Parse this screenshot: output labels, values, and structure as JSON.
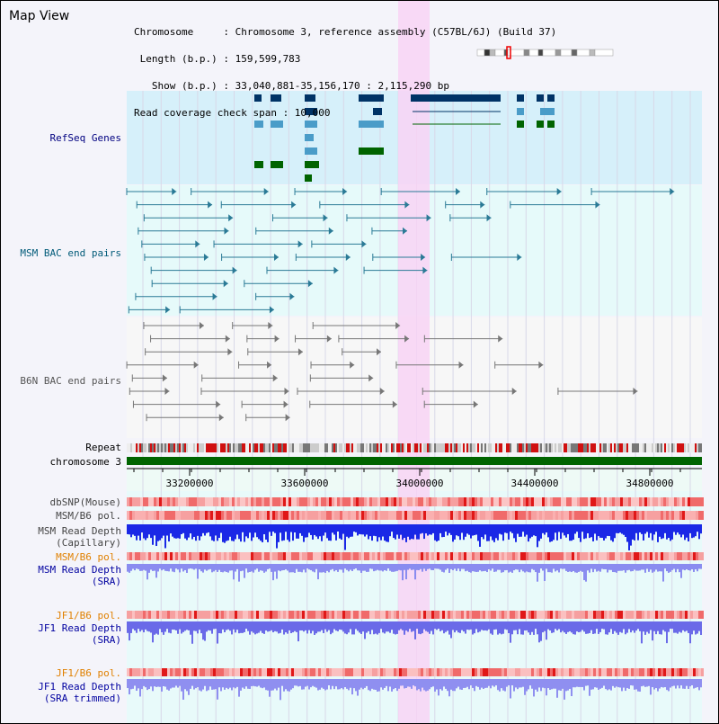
{
  "header": {
    "title": "Map View",
    "info_lines": [
      "Chromosome     : Chromosome 3, reference assembly (C57BL/6J) (Build 37)",
      " Length (b.p.) : 159,599,783",
      "   Show (b.p.) : 33,040,881-35,156,170 : 2,115,290 bp",
      "Read coverage check span : 10,000"
    ]
  },
  "tracks": {
    "refseq": {
      "label": "RefSeq Genes",
      "color": "#000080"
    },
    "msm_bac": {
      "label": "MSM BAC end pairs",
      "color": "#005a78"
    },
    "b6n_bac": {
      "label": "B6N BAC end pairs",
      "color": "#555555"
    },
    "repeat": {
      "label": "Repeat"
    },
    "chromosome": {
      "label": "chromosome 3"
    },
    "ruler_ticks": [
      "33200000",
      "33600000",
      "34000000",
      "34400000",
      "34800000"
    ],
    "dbsnp": {
      "label": "dbSNP(Mouse)"
    },
    "msm_b6_pol_1": {
      "label": "MSM/B6 pol."
    },
    "msm_read_depth_cap": {
      "label": "MSM Read Depth",
      "sublabel": "(Capillary)"
    },
    "msm_b6_pol_2": {
      "label": "MSM/B6 pol."
    },
    "msm_read_depth_sra": {
      "label": "MSM Read Depth",
      "sublabel": "(SRA)"
    },
    "jf1_b6_pol_1": {
      "label": "JF1/B6 pol."
    },
    "jf1_read_depth_sra": {
      "label": "JF1 Read Depth",
      "sublabel": "(SRA)"
    },
    "jf1_b6_pol_2": {
      "label": "JF1/B6 pol."
    },
    "jf1_read_depth_trim": {
      "label": "JF1 Read Depth",
      "sublabel": "(SRA trimmed)"
    }
  },
  "colors": {
    "highlight": "#f8d4f4",
    "refseq_bg": "#d6f0fa",
    "bac_bg": "#e6fafa",
    "gene_dark": "#003366",
    "gene_light": "#4a9cc8",
    "gene_green": "#006400",
    "chromosome": "#006400",
    "orange_label": "#e08000",
    "blue_label": "#0000a0"
  }
}
